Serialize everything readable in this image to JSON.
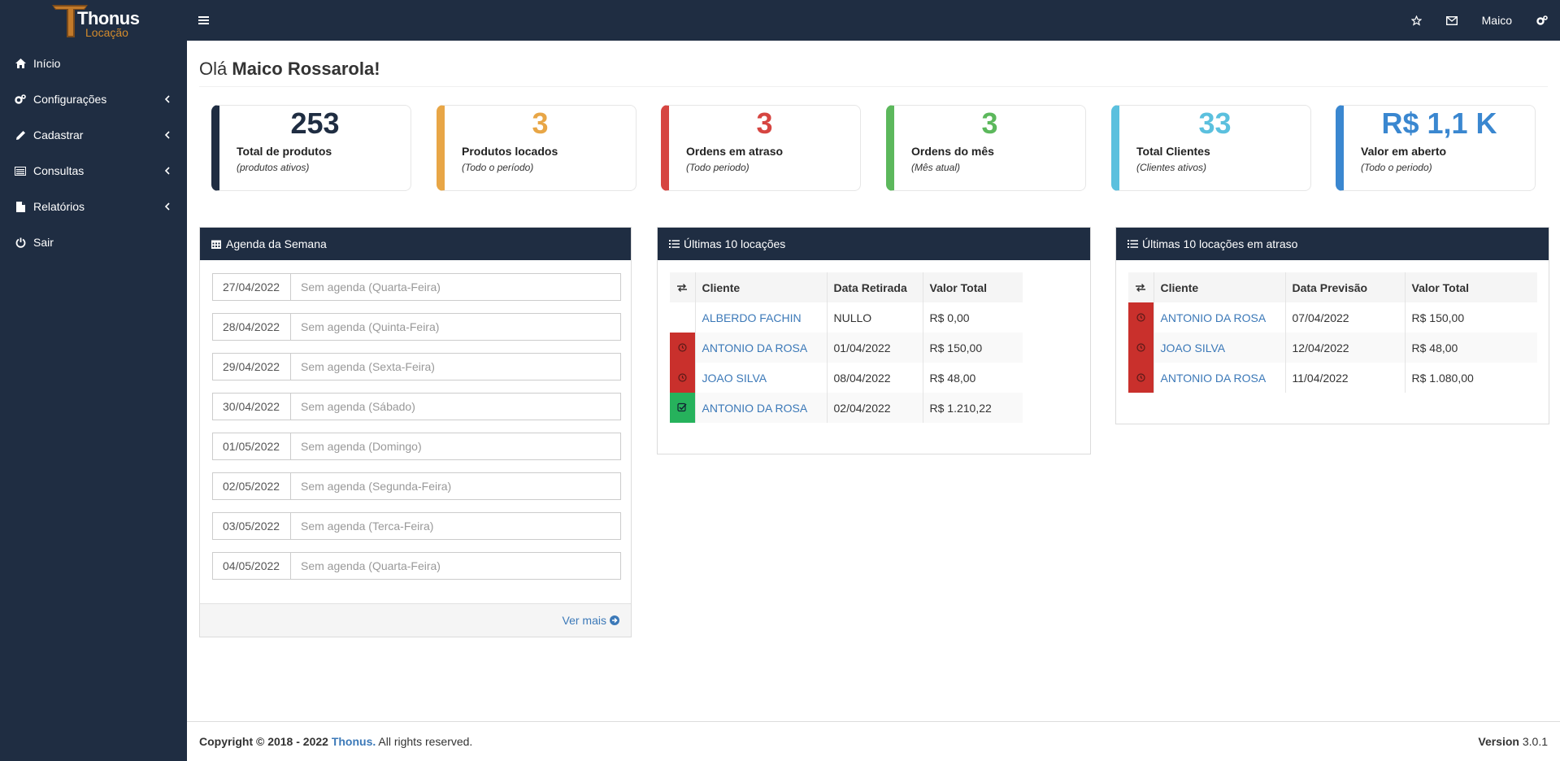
{
  "brand": {
    "name": "Thonus",
    "tagline": "Locação",
    "accent": "#d38b2c"
  },
  "sidebar": {
    "items": [
      {
        "label": "Início",
        "icon": "home-icon"
      },
      {
        "label": "Configurações",
        "icon": "gears-icon"
      },
      {
        "label": "Cadastrar",
        "icon": "pencil-icon"
      },
      {
        "label": "Consultas",
        "icon": "list-icon"
      },
      {
        "label": "Relatórios",
        "icon": "file-icon"
      },
      {
        "label": "Sair",
        "icon": "power-icon"
      }
    ]
  },
  "header": {
    "user": "Maico"
  },
  "greeting": {
    "prefix": "Olá",
    "name": "Maico Rossarola!"
  },
  "stats": [
    {
      "value": "253",
      "label": "Total de produtos",
      "sub": "(produtos ativos)",
      "color": "#1f2d42"
    },
    {
      "value": "3",
      "label": "Produtos locados",
      "sub": "(Todo o período)",
      "color": "#e8a646"
    },
    {
      "value": "3",
      "label": "Ordens em atraso",
      "sub": "(Todo periodo)",
      "color": "#d64541"
    },
    {
      "value": "3",
      "label": "Ordens do mês",
      "sub": "(Mês atual)",
      "color": "#5cb85c"
    },
    {
      "value": "33",
      "label": "Total Clientes",
      "sub": "(Clientes ativos)",
      "color": "#5bc0de"
    },
    {
      "value": "R$ 1,1 K",
      "label": "Valor em aberto",
      "sub": "(Todo o periodo)",
      "color": "#3a87d0"
    }
  ],
  "agenda": {
    "title": "Agenda da Semana",
    "rows": [
      {
        "date": "27/04/2022",
        "text": "Sem agenda (Quarta-Feira)"
      },
      {
        "date": "28/04/2022",
        "text": "Sem agenda (Quinta-Feira)"
      },
      {
        "date": "29/04/2022",
        "text": "Sem agenda (Sexta-Feira)"
      },
      {
        "date": "30/04/2022",
        "text": "Sem agenda (Sábado)"
      },
      {
        "date": "01/05/2022",
        "text": "Sem agenda (Domingo)"
      },
      {
        "date": "02/05/2022",
        "text": "Sem agenda (Segunda-Feira)"
      },
      {
        "date": "03/05/2022",
        "text": "Sem agenda (Terca-Feira)"
      },
      {
        "date": "04/05/2022",
        "text": "Sem agenda (Quarta-Feira)"
      }
    ],
    "more": "Ver mais"
  },
  "recent": {
    "title": "Últimas 10 locações",
    "columns": [
      "Cliente",
      "Data Retirada",
      "Valor Total"
    ],
    "rows": [
      {
        "status": "none",
        "client": "ALBERDO FACHIN",
        "date": "NULLO",
        "value": "R$ 0,00"
      },
      {
        "status": "late",
        "client": "ANTONIO DA ROSA",
        "date": "01/04/2022",
        "value": "R$ 150,00"
      },
      {
        "status": "late",
        "client": "JOAO SILVA",
        "date": "08/04/2022",
        "value": "R$ 48,00"
      },
      {
        "status": "done",
        "client": "ANTONIO DA ROSA",
        "date": "02/04/2022",
        "value": "R$ 1.210,22"
      }
    ]
  },
  "late": {
    "title": "Últimas 10 locações em atraso",
    "columns": [
      "Cliente",
      "Data Previsão",
      "Valor Total"
    ],
    "rows": [
      {
        "status": "late",
        "client": "ANTONIO DA ROSA",
        "date": "07/04/2022",
        "value": "R$ 150,00"
      },
      {
        "status": "late",
        "client": "JOAO SILVA",
        "date": "12/04/2022",
        "value": "R$ 48,00"
      },
      {
        "status": "late",
        "client": "ANTONIO DA ROSA",
        "date": "11/04/2022",
        "value": "R$ 1.080,00"
      }
    ]
  },
  "footer": {
    "copyright": "Copyright © 2018 - 2022",
    "brand": "Thonus.",
    "rights": "All rights reserved.",
    "version_label": "Version",
    "version": "3.0.1"
  }
}
